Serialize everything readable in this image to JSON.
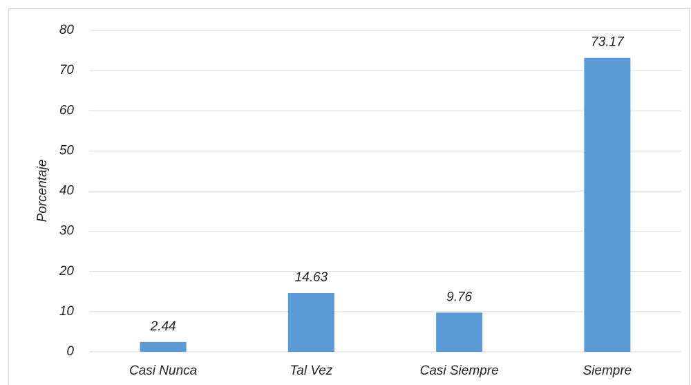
{
  "chart_data": {
    "type": "bar",
    "y_label": "Porcentaje",
    "categories": [
      "Casi Nunca",
      "Tal Vez",
      "Casi Siempre",
      "Siempre"
    ],
    "values": [
      2.44,
      14.63,
      9.76,
      73.17
    ],
    "color": "#5b9bd5",
    "ylim": [
      0,
      80
    ],
    "yticks": [
      0,
      10,
      20,
      30,
      40,
      50,
      60,
      70,
      80
    ],
    "grid": true
  }
}
